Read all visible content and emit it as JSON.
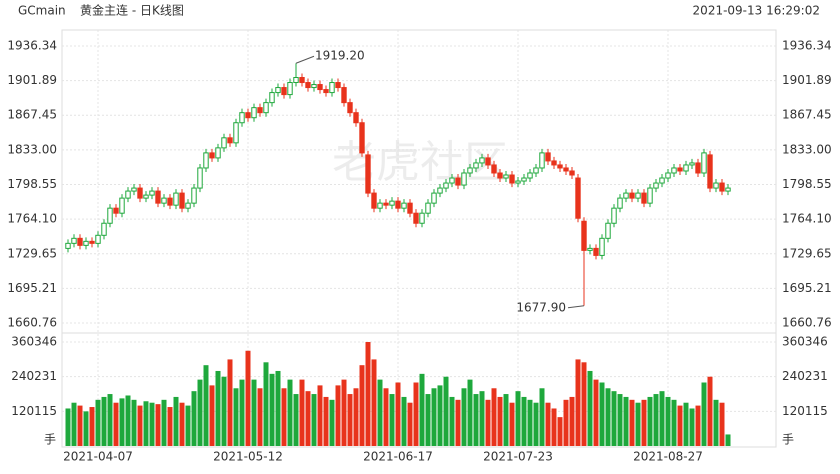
{
  "chart_data": {
    "type": "candlestick",
    "symbol": "GCmain",
    "title": "黄金主连 - 日K线图",
    "timestamp": "2021-09-13 16:29:02",
    "watermark": "老虎社区",
    "volume_unit": "手",
    "max_label": "1919.20",
    "min_label": "1677.90",
    "up_color": "#1ea83c",
    "down_color": "#e8331c",
    "categories": [
      null,
      null,
      null,
      null,
      null,
      "2021-04-07",
      null,
      null,
      null,
      null,
      null,
      null,
      null,
      null,
      null,
      null,
      null,
      null,
      null,
      null,
      null,
      null,
      null,
      null,
      null,
      null,
      null,
      null,
      null,
      null,
      "2021-05-12",
      null,
      null,
      null,
      null,
      null,
      null,
      null,
      null,
      null,
      null,
      null,
      null,
      null,
      null,
      null,
      null,
      null,
      null,
      null,
      null,
      null,
      null,
      null,
      null,
      "2021-06-17",
      null,
      null,
      null,
      null,
      null,
      null,
      null,
      null,
      null,
      null,
      null,
      null,
      null,
      null,
      null,
      null,
      null,
      null,
      null,
      "2021-07-23",
      null,
      null,
      null,
      null,
      null,
      null,
      null,
      null,
      null,
      null,
      null,
      null,
      null,
      null,
      null,
      null,
      null,
      null,
      null,
      null,
      null,
      null,
      null,
      null,
      "2021-08-27",
      null,
      null,
      null,
      null,
      null,
      null,
      null,
      null,
      null,
      null
    ],
    "open": [
      1735,
      1740,
      1745,
      1738,
      1742,
      1740,
      1748,
      1760,
      1775,
      1770,
      1785,
      1792,
      1795,
      1785,
      1788,
      1792,
      1780,
      1785,
      1778,
      1790,
      1775,
      1780,
      1795,
      1815,
      1830,
      1825,
      1835,
      1845,
      1840,
      1860,
      1870,
      1865,
      1875,
      1870,
      1880,
      1890,
      1895,
      1888,
      1900,
      1905,
      1900,
      1895,
      1898,
      1893,
      1890,
      1900,
      1895,
      1880,
      1870,
      1860,
      1828,
      1790,
      1775,
      1780,
      1778,
      1782,
      1775,
      1780,
      1770,
      1760,
      1770,
      1780,
      1790,
      1795,
      1800,
      1805,
      1798,
      1810,
      1815,
      1820,
      1825,
      1818,
      1810,
      1805,
      1808,
      1800,
      1802,
      1805,
      1810,
      1815,
      1830,
      1822,
      1818,
      1815,
      1812,
      1805,
      1762,
      1733,
      1735,
      1728,
      1745,
      1760,
      1775,
      1785,
      1790,
      1785,
      1790,
      1780,
      1795,
      1800,
      1805,
      1810,
      1815,
      1812,
      1818,
      1820,
      1810,
      1828,
      1795,
      1800,
      1792
    ],
    "high": [
      1744,
      1749,
      1749,
      1746,
      1746,
      1752,
      1764,
      1779,
      1779,
      1789,
      1796,
      1799,
      1799,
      1792,
      1796,
      1796,
      1789,
      1789,
      1794,
      1794,
      1784,
      1799,
      1819,
      1834,
      1834,
      1839,
      1849,
      1849,
      1864,
      1874,
      1874,
      1879,
      1879,
      1884,
      1894,
      1899,
      1899,
      1904,
      1919.2,
      1909,
      1904,
      1902,
      1902,
      1897,
      1904,
      1904,
      1899,
      1884,
      1874,
      1864,
      1832,
      1794,
      1784,
      1784,
      1786,
      1786,
      1784,
      1784,
      1774,
      1774,
      1784,
      1794,
      1799,
      1804,
      1809,
      1809,
      1814,
      1819,
      1824,
      1829,
      1829,
      1822,
      1814,
      1812,
      1812,
      1806,
      1809,
      1814,
      1819,
      1834,
      1834,
      1826,
      1822,
      1819,
      1816,
      1809,
      1766,
      1739,
      1739,
      1749,
      1764,
      1779,
      1789,
      1794,
      1794,
      1794,
      1794,
      1799,
      1804,
      1809,
      1814,
      1819,
      1819,
      1822,
      1824,
      1824,
      1834,
      1832,
      1804,
      1804,
      1799
    ],
    "low": [
      1731,
      1736,
      1734,
      1734,
      1736,
      1736,
      1744,
      1756,
      1766,
      1766,
      1781,
      1788,
      1781,
      1781,
      1784,
      1776,
      1776,
      1774,
      1774,
      1771,
      1771,
      1776,
      1791,
      1811,
      1821,
      1821,
      1831,
      1836,
      1836,
      1856,
      1861,
      1861,
      1866,
      1866,
      1876,
      1886,
      1884,
      1884,
      1896,
      1896,
      1891,
      1891,
      1889,
      1886,
      1886,
      1891,
      1876,
      1866,
      1856,
      1826,
      1786,
      1771,
      1771,
      1774,
      1774,
      1771,
      1771,
      1766,
      1756,
      1756,
      1766,
      1776,
      1786,
      1791,
      1796,
      1794,
      1794,
      1806,
      1811,
      1816,
      1814,
      1806,
      1801,
      1801,
      1796,
      1796,
      1798,
      1801,
      1806,
      1811,
      1818,
      1814,
      1811,
      1808,
      1804,
      1761,
      1677.9,
      1729,
      1724,
      1724,
      1741,
      1756,
      1771,
      1781,
      1781,
      1781,
      1776,
      1776,
      1791,
      1796,
      1801,
      1806,
      1808,
      1808,
      1814,
      1806,
      1806,
      1791,
      1791,
      1788,
      1788
    ],
    "close": [
      1740,
      1745,
      1738,
      1742,
      1740,
      1748,
      1760,
      1775,
      1770,
      1785,
      1792,
      1795,
      1785,
      1788,
      1792,
      1780,
      1785,
      1778,
      1790,
      1775,
      1780,
      1795,
      1815,
      1830,
      1825,
      1835,
      1845,
      1840,
      1860,
      1870,
      1865,
      1875,
      1870,
      1880,
      1890,
      1895,
      1888,
      1900,
      1905,
      1900,
      1895,
      1898,
      1893,
      1890,
      1900,
      1895,
      1880,
      1870,
      1860,
      1830,
      1790,
      1775,
      1780,
      1778,
      1782,
      1775,
      1780,
      1770,
      1760,
      1770,
      1780,
      1790,
      1795,
      1800,
      1805,
      1798,
      1810,
      1815,
      1820,
      1825,
      1818,
      1810,
      1805,
      1808,
      1800,
      1802,
      1805,
      1810,
      1815,
      1830,
      1822,
      1818,
      1815,
      1812,
      1808,
      1765,
      1733,
      1735,
      1728,
      1745,
      1760,
      1775,
      1785,
      1790,
      1785,
      1790,
      1780,
      1795,
      1800,
      1805,
      1810,
      1815,
      1812,
      1818,
      1820,
      1810,
      1830,
      1795,
      1800,
      1792,
      1795
    ],
    "volume": [
      130000,
      150000,
      140000,
      120000,
      135000,
      160000,
      170000,
      180000,
      150000,
      165000,
      175000,
      160000,
      140000,
      155000,
      150000,
      145000,
      160000,
      135000,
      170000,
      150000,
      140000,
      190000,
      230000,
      280000,
      210000,
      260000,
      240000,
      300000,
      200000,
      230000,
      330000,
      230000,
      200000,
      290000,
      250000,
      260000,
      200000,
      230000,
      180000,
      230000,
      190000,
      180000,
      210000,
      170000,
      160000,
      210000,
      230000,
      180000,
      200000,
      280000,
      360346,
      300000,
      230000,
      200000,
      180000,
      220000,
      170000,
      150000,
      220000,
      250000,
      180000,
      200000,
      210000,
      240000,
      170000,
      160000,
      200000,
      230000,
      180000,
      190000,
      160000,
      200000,
      170000,
      180000,
      150000,
      190000,
      170000,
      160000,
      150000,
      200000,
      150000,
      130000,
      100000,
      160000,
      170000,
      300000,
      290000,
      260000,
      230000,
      220000,
      200000,
      190000,
      180000,
      170000,
      160000,
      150000,
      160000,
      170000,
      180000,
      190000,
      170000,
      160000,
      140000,
      150000,
      130000,
      140000,
      220000,
      240000,
      160000,
      150000,
      40000
    ],
    "ylim": [
      1660.76,
      1936.34
    ],
    "yticks": [
      1936.34,
      1901.89,
      1867.45,
      {
        "value": 1833,
        "label": "1833.00"
      },
      1798.55,
      {
        "value": 1764.1,
        "label": "1764.10"
      },
      1729.65,
      1695.21,
      1660.76
    ],
    "y2lim": [
      0,
      360346
    ],
    "y2ticks": [
      360346,
      240231,
      120115
    ],
    "grid": true
  }
}
